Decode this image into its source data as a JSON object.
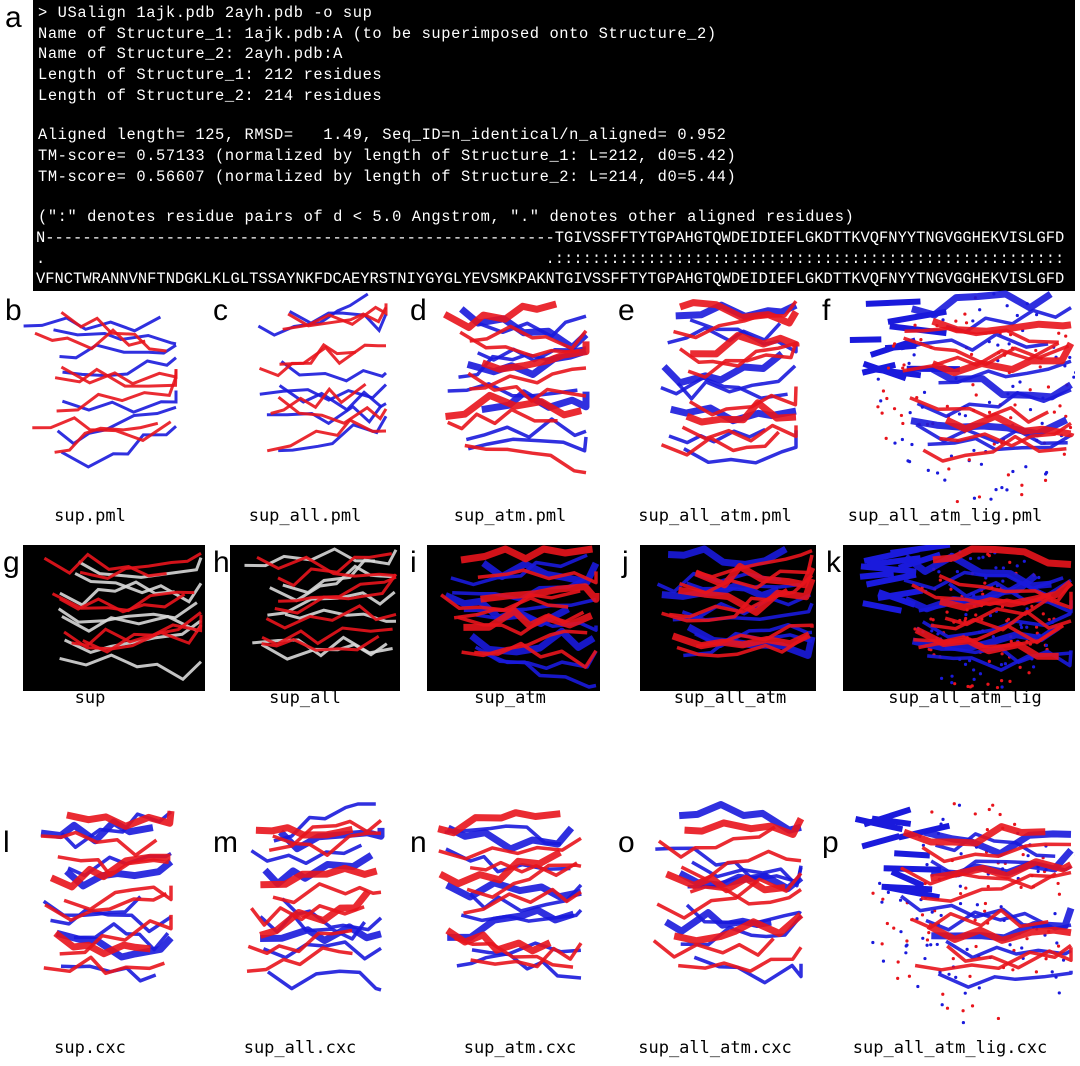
{
  "terminal": {
    "lines": [
      "> USalign 1ajk.pdb 2ayh.pdb -o sup",
      "Name of Structure_1: 1ajk.pdb:A (to be superimposed onto Structure_2)",
      "Name of Structure_2: 2ayh.pdb:A",
      "Length of Structure_1: 212 residues",
      "Length of Structure_2: 214 residues",
      "",
      "Aligned length= 125, RMSD=   1.49, Seq_ID=n_identical/n_aligned= 0.952",
      "TM-score= 0.57133 (normalized by length of Structure_1: L=212, d0=5.42)",
      "TM-score= 0.56607 (normalized by length of Structure_2: L=214, d0=5.44)",
      "",
      "(\":\" denotes residue pairs of d < 5.0 Angstrom, \".\" denotes other aligned residues)",
      "N-------------------------------------------------------TGIVSSFFTYTGPAHGTQWDEIDIEFLGKDTTKVQFNYYTNGVGGHEKVISLGFD",
      ".                                                      .:::::::::::::::::::::::::::::::::::::::::::::::::::::::",
      "VFNCTWRANNVNFTNDGKLKLGLTSSAYNKFDCAEYRSTNIYGYGLYEVSMKPAKNTGIVSSFFTYTGPAHGTQWDEIDIEFLGKDTTKVQFNYYTNGVGGHEKVISLGFD"
    ]
  },
  "panel_a_label": "a",
  "panels": [
    {
      "label": "b",
      "caption": "sup.pml",
      "style": "ribbon-trace"
    },
    {
      "label": "c",
      "caption": "sup_all.pml",
      "style": "ribbon-trace"
    },
    {
      "label": "d",
      "caption": "sup_atm.pml",
      "style": "cartoon"
    },
    {
      "label": "e",
      "caption": "sup_all_atm.pml",
      "style": "cartoon"
    },
    {
      "label": "f",
      "caption": "sup_all_atm_lig.pml",
      "style": "cartoon-ligand"
    },
    {
      "label": "g",
      "caption": "sup",
      "style": "dark-trace"
    },
    {
      "label": "h",
      "caption": "sup_all",
      "style": "dark-trace"
    },
    {
      "label": "i",
      "caption": "sup_atm",
      "style": "dark-cartoon"
    },
    {
      "label": "j",
      "caption": "sup_all_atm",
      "style": "dark-cartoon"
    },
    {
      "label": "k",
      "caption": "sup_all_atm_lig",
      "style": "dark-cartoon-ligand"
    },
    {
      "label": "l",
      "caption": "sup.cxc",
      "style": "cartoon"
    },
    {
      "label": "m",
      "caption": "sup_all.cxc",
      "style": "cartoon"
    },
    {
      "label": "n",
      "caption": "sup_atm.cxc",
      "style": "cartoon"
    },
    {
      "label": "o",
      "caption": "sup_all_atm.cxc",
      "style": "cartoon"
    },
    {
      "label": "p",
      "caption": "sup_all_atm_lig.cxc",
      "style": "cartoon-ligand"
    }
  ],
  "colors": {
    "structure_1": "#e8141c",
    "structure_2": "#1a1adc",
    "unaligned": "#d8d8d8",
    "terminal_bg": "#000000",
    "terminal_fg": "#ffffff"
  }
}
